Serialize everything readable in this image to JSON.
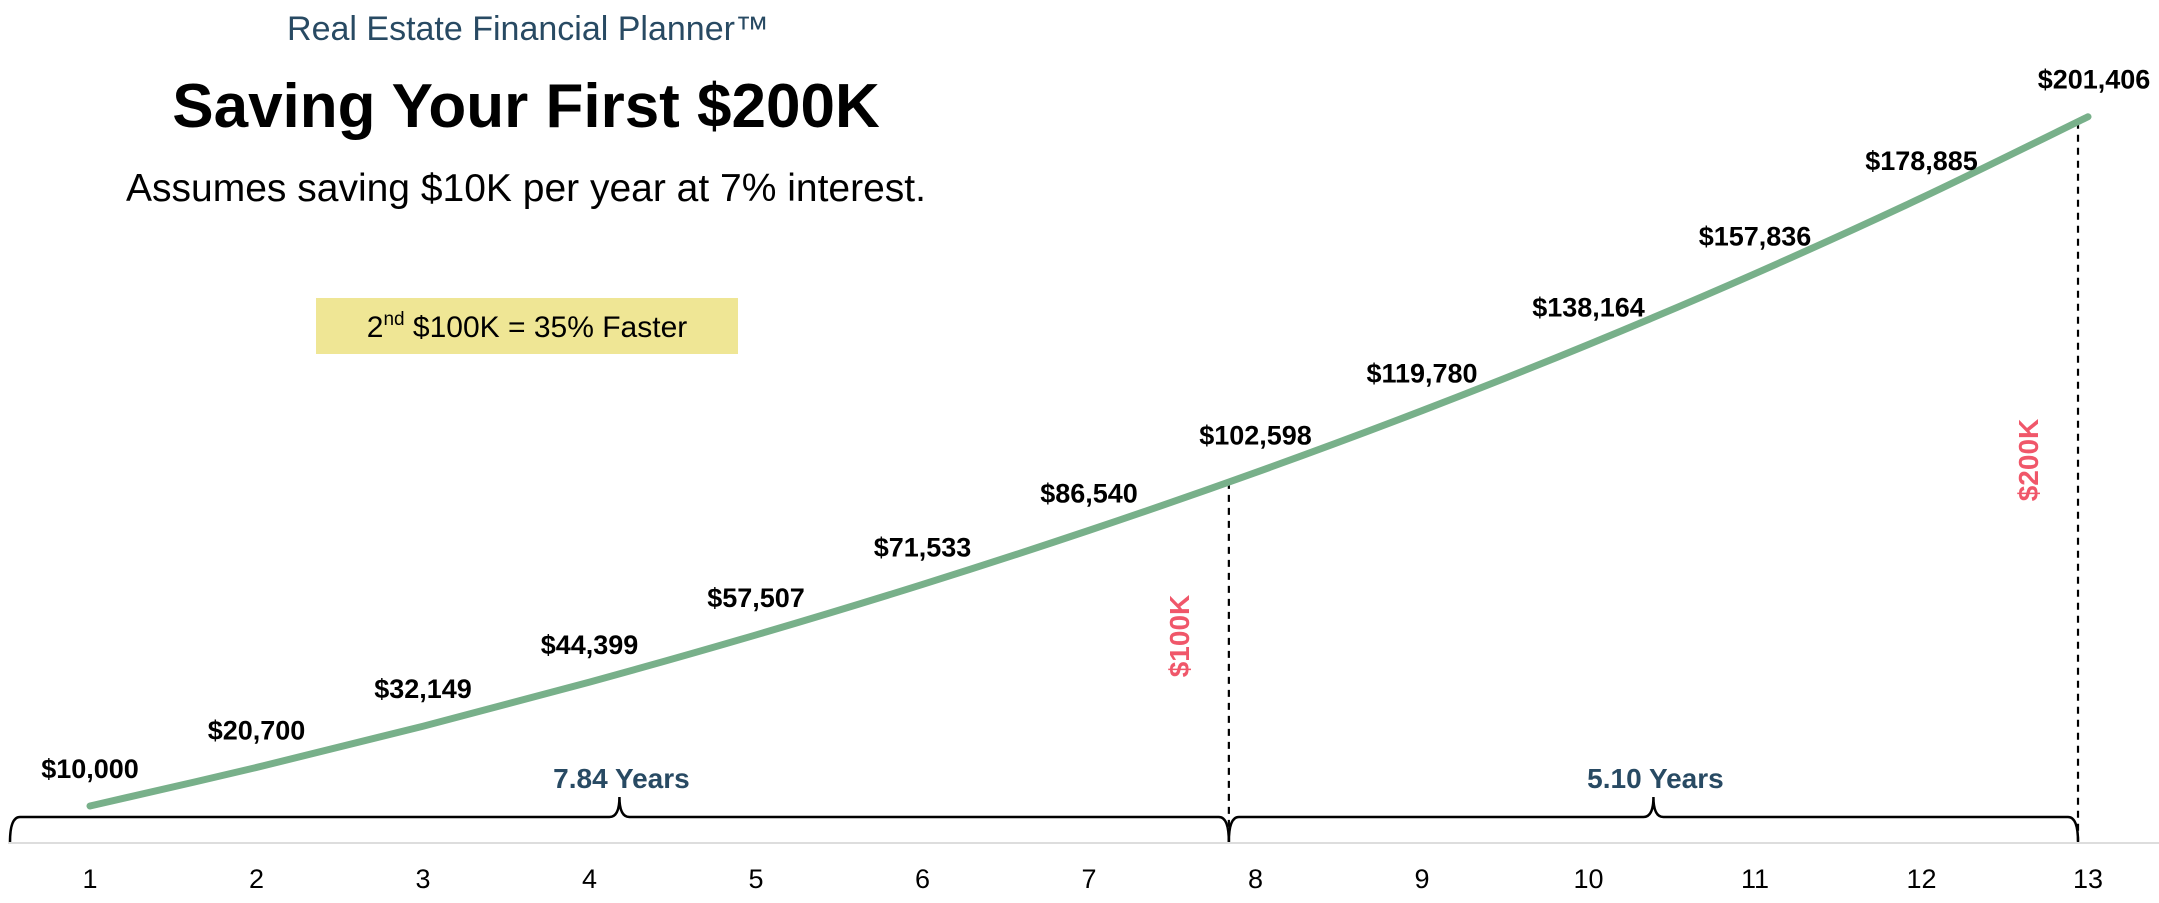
{
  "header": {
    "brand": "Real Estate Financial Planner™",
    "title": "Saving Your First $200K",
    "subtitle": "Assumes saving $10K per year at 7% interest."
  },
  "callout": {
    "ordinal": "2",
    "superscript": "nd",
    "text": " $100K = 35% Faster",
    "background": "#efe695"
  },
  "colors": {
    "line": "#78b08a",
    "marker": "#f0576a",
    "span": "#284a63"
  },
  "chart_data": {
    "type": "line",
    "x": [
      1,
      2,
      3,
      4,
      5,
      6,
      7,
      8,
      9,
      10,
      11,
      12,
      13
    ],
    "values": [
      10000,
      20700,
      32149,
      44399,
      57507,
      71533,
      86540,
      102598,
      119780,
      138164,
      157836,
      178885,
      201406
    ],
    "data_labels": [
      "$10,000",
      "$20,700",
      "$32,149",
      "$44,399",
      "$57,507",
      "$71,533",
      "$86,540",
      "$102,598",
      "$119,780",
      "$138,164",
      "$157,836",
      "$178,885",
      "$201,406"
    ],
    "x_tick_labels": [
      "1",
      "2",
      "3",
      "4",
      "5",
      "6",
      "7",
      "8",
      "9",
      "10",
      "11",
      "12",
      "13"
    ],
    "markers": [
      {
        "label": "$100K",
        "x": 7.84,
        "value": 100000
      },
      {
        "label": "$200K",
        "x": 12.94,
        "value": 200000
      }
    ],
    "spans": [
      {
        "label": "7.84 Years",
        "from": 0.5,
        "to": 7.84
      },
      {
        "label": "5.10 Years",
        "from": 7.84,
        "to": 12.94
      }
    ],
    "grid": false,
    "legend": "none"
  }
}
